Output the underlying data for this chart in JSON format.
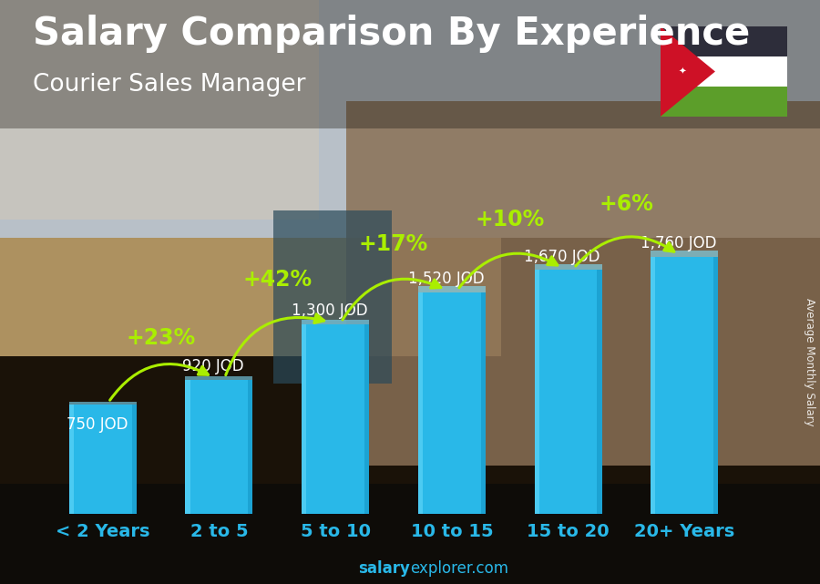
{
  "title": "Salary Comparison By Experience",
  "subtitle": "Courier Sales Manager",
  "categories": [
    "< 2 Years",
    "2 to 5",
    "5 to 10",
    "10 to 15",
    "15 to 20",
    "20+ Years"
  ],
  "values": [
    750,
    920,
    1300,
    1520,
    1670,
    1760
  ],
  "value_labels": [
    "750 JOD",
    "920 JOD",
    "1,300 JOD",
    "1,520 JOD",
    "1,670 JOD",
    "1,760 JOD"
  ],
  "pct_labels": [
    "+23%",
    "+42%",
    "+17%",
    "+10%",
    "+6%"
  ],
  "bar_color_main": "#29B8E8",
  "bar_color_light": "#55D0F5",
  "bar_color_dark": "#1090C0",
  "title_color": "#FFFFFF",
  "subtitle_color": "#FFFFFF",
  "value_label_color": "#FFFFFF",
  "pct_label_color": "#AAEE00",
  "xlabel_color": "#29B8E8",
  "arrow_color": "#AAEE00",
  "footer_bold": "salary",
  "footer_normal": "explorer.com",
  "side_label": "Average Monthly Salary",
  "ylim_max": 2200,
  "bar_bottom": 0,
  "title_fontsize": 30,
  "subtitle_fontsize": 19,
  "value_fontsize": 12,
  "pct_fontsize": 17,
  "xlabel_fontsize": 14,
  "footer_fontsize": 12,
  "bg_left_color": "#C8B89A",
  "bg_right_color": "#4A3A28",
  "bg_sky_color": "#B8C8D8",
  "flag_black": "#2D2D3A",
  "flag_white": "#FFFFFF",
  "flag_green": "#5C9E2A",
  "flag_red": "#CE1126"
}
